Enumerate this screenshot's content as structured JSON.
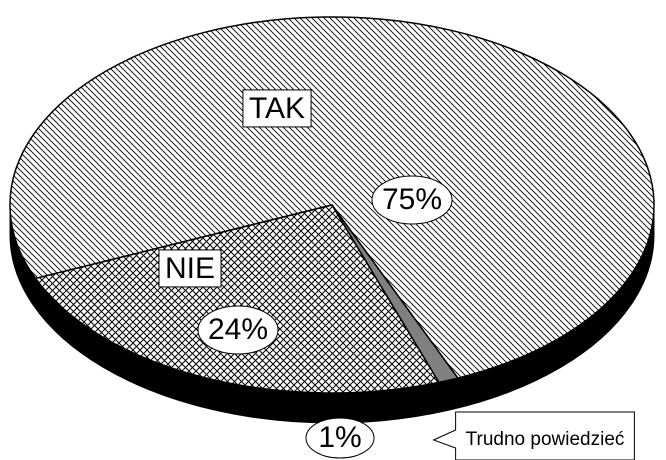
{
  "chart_data": {
    "type": "pie",
    "categories": [
      "TAK",
      "NIE",
      "Trudno powiedzieć"
    ],
    "values": [
      75,
      24,
      1
    ],
    "value_labels": [
      "75%",
      "24%",
      "1%"
    ],
    "patterns": [
      "diagonal",
      "crosshatch",
      "solid"
    ],
    "colors": [
      "#000000",
      "#000000",
      "#808080"
    ]
  }
}
